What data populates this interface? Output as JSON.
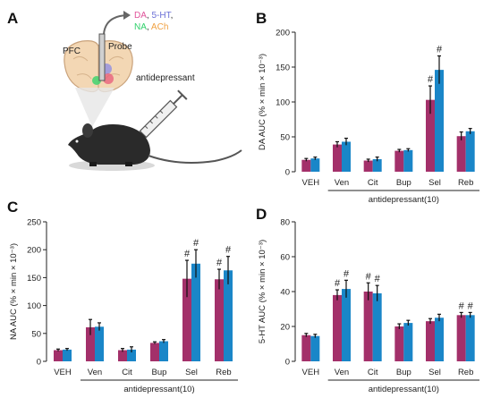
{
  "panels": {
    "A": "A",
    "B": "B",
    "C": "C",
    "D": "D"
  },
  "illustration": {
    "region_label": "PFC",
    "probe_label": "Probe",
    "drug_label": "antidepressant",
    "neurotransmitters": [
      {
        "text": "DA",
        "color": "#e0529a"
      },
      {
        "text": ", ",
        "color": "#333333"
      },
      {
        "text": "5-HT",
        "color": "#6b6fd6"
      },
      {
        "text": ",",
        "color": "#333333"
      },
      {
        "text": "NA",
        "color": "#2fd06a"
      },
      {
        "text": ", ",
        "color": "#333333"
      },
      {
        "text": "ACh",
        "color": "#f0a040"
      }
    ]
  },
  "colors": {
    "series1": "#a3306a",
    "series2": "#1a86c8"
  },
  "chart_data": [
    {
      "type": "bar",
      "panel": "B",
      "categories": [
        "VEH",
        "Ven",
        "Cit",
        "Bup",
        "Sel",
        "Reb"
      ],
      "group_label": "antidepressant(10)",
      "ylabel": "DA  AUC (% × min × 10⁻³)",
      "ylim": [
        0,
        200
      ],
      "yticks": [
        0,
        50,
        100,
        150,
        200
      ],
      "series": [
        {
          "values": [
            17,
            39,
            16,
            30,
            103,
            51
          ],
          "errors": [
            2,
            4,
            2,
            2,
            20,
            6
          ],
          "marks": [
            "",
            "",
            "",
            "",
            "#",
            ""
          ]
        },
        {
          "values": [
            19,
            43,
            18,
            31,
            146,
            58
          ],
          "errors": [
            2,
            5,
            3,
            2,
            20,
            4
          ],
          "marks": [
            "",
            "",
            "",
            "",
            "#",
            ""
          ]
        }
      ]
    },
    {
      "type": "bar",
      "panel": "C",
      "categories": [
        "VEH",
        "Ven",
        "Cit",
        "Bup",
        "Sel",
        "Reb"
      ],
      "group_label": "antidepressant(10)",
      "ylabel": "NA  AUC (% × min × 10⁻³)",
      "ylim": [
        0,
        250
      ],
      "yticks": [
        0,
        50,
        100,
        150,
        200,
        250
      ],
      "series": [
        {
          "values": [
            20,
            61,
            20,
            33,
            148,
            147
          ],
          "errors": [
            2,
            14,
            3,
            2,
            33,
            18
          ],
          "marks": [
            "",
            "",
            "",
            "",
            "#",
            "#"
          ]
        },
        {
          "values": [
            21,
            62,
            21,
            36,
            175,
            163
          ],
          "errors": [
            2,
            7,
            5,
            3,
            25,
            25
          ],
          "marks": [
            "",
            "",
            "",
            "",
            "#",
            "#"
          ]
        }
      ]
    },
    {
      "type": "bar",
      "panel": "D",
      "categories": [
        "VEH",
        "Ven",
        "Cit",
        "Bup",
        "Sel",
        "Reb"
      ],
      "group_label": "antidepressant(10)",
      "ylabel": "5-HT  AUC (% × min × 10⁻³)",
      "ylim": [
        0,
        80
      ],
      "yticks": [
        0,
        20,
        40,
        60,
        80
      ],
      "series": [
        {
          "values": [
            15,
            38,
            40,
            20,
            23,
            26.5
          ],
          "errors": [
            1,
            3,
            5,
            1.5,
            1.5,
            1.5
          ],
          "marks": [
            "",
            "#",
            "#",
            "",
            "",
            "#"
          ]
        },
        {
          "values": [
            14.5,
            41.5,
            39,
            22,
            25,
            26.5
          ],
          "errors": [
            1,
            5,
            4.5,
            1.5,
            2,
            1.5
          ],
          "marks": [
            "",
            "#",
            "#",
            "",
            "",
            "#"
          ]
        }
      ]
    }
  ]
}
